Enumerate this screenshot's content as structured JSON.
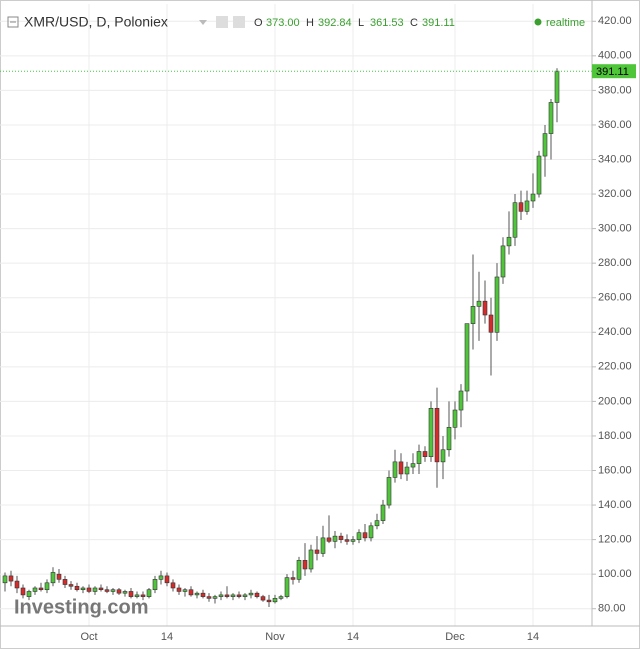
{
  "chart_data": {
    "type": "candlestick",
    "title": "XMR/USD, D, Poloniex",
    "header": {
      "labels": [
        "O",
        "H",
        "L",
        "C"
      ],
      "values": [
        "373.00",
        "392.84",
        "361.53",
        "391.11"
      ]
    },
    "status": "realtime",
    "watermark": "Investing.com",
    "last_price": {
      "value": 391.11,
      "label": "391.11"
    },
    "categories": [
      null,
      null,
      null,
      null,
      null,
      null,
      null,
      null,
      null,
      null,
      null,
      null,
      null,
      null,
      "Oct",
      null,
      null,
      null,
      null,
      null,
      null,
      null,
      null,
      null,
      null,
      null,
      null,
      "14",
      null,
      null,
      null,
      null,
      null,
      null,
      null,
      null,
      null,
      null,
      null,
      null,
      null,
      null,
      null,
      null,
      null,
      "Nov",
      null,
      null,
      null,
      null,
      null,
      null,
      null,
      null,
      null,
      null,
      null,
      null,
      "14",
      null,
      null,
      null,
      null,
      null,
      null,
      null,
      null,
      null,
      null,
      null,
      null,
      null,
      null,
      null,
      null,
      "Dec",
      null,
      null,
      null,
      null,
      null,
      null,
      null,
      null,
      null,
      null,
      null,
      null,
      "14",
      null,
      null,
      null,
      null
    ],
    "open": [
      95,
      99,
      96,
      92,
      87,
      90,
      92,
      91,
      95,
      100,
      97,
      94,
      93,
      91,
      92,
      90,
      92,
      91,
      90,
      91,
      89,
      90,
      87,
      88,
      87,
      91,
      97,
      99,
      95,
      92,
      90,
      91,
      88,
      89,
      87,
      86,
      87,
      88,
      87,
      88,
      87,
      88,
      89,
      87,
      85,
      84,
      86,
      87,
      98,
      97,
      108,
      103,
      114,
      112,
      121,
      119,
      122,
      120,
      119,
      120,
      124,
      121,
      128,
      131,
      140,
      156,
      165,
      158,
      162,
      164,
      171,
      168,
      196,
      165,
      172,
      185,
      195,
      206,
      245,
      255,
      258,
      250,
      240,
      272,
      290,
      295,
      315,
      310,
      316,
      320,
      342,
      355,
      373
    ],
    "high": [
      101,
      102,
      99,
      94,
      91,
      93,
      95,
      97,
      104,
      103,
      99,
      96,
      95,
      93,
      94,
      93,
      94,
      93,
      92,
      92,
      91,
      92,
      90,
      90,
      92,
      99,
      102,
      101,
      97,
      94,
      92,
      93,
      90,
      91,
      89,
      88,
      90,
      93,
      89,
      90,
      89,
      91,
      90,
      88,
      88,
      88,
      88,
      100,
      102,
      110,
      118,
      117,
      122,
      128,
      134,
      125,
      124,
      123,
      122,
      126,
      129,
      130,
      135,
      143,
      160,
      172,
      170,
      165,
      170,
      175,
      174,
      200,
      208,
      180,
      200,
      200,
      210,
      245,
      285,
      275,
      270,
      260,
      280,
      295,
      310,
      320,
      322,
      322,
      332,
      345,
      360,
      375,
      392.84
    ],
    "low": [
      90,
      93,
      89,
      86,
      85,
      88,
      90,
      89,
      93,
      95,
      92,
      91,
      90,
      89,
      89,
      88,
      90,
      89,
      88,
      88,
      87,
      86,
      86,
      85,
      86,
      89,
      94,
      93,
      90,
      88,
      87,
      87,
      86,
      86,
      84,
      83,
      85,
      86,
      85,
      86,
      85,
      86,
      86,
      84,
      81,
      83,
      85,
      86,
      94,
      95,
      99,
      101,
      108,
      110,
      118,
      115,
      118,
      117,
      117,
      118,
      119,
      119,
      126,
      129,
      138,
      153,
      155,
      154,
      158,
      158,
      165,
      165,
      150,
      155,
      168,
      178,
      185,
      200,
      230,
      235,
      245,
      215,
      235,
      268,
      285,
      290,
      305,
      308,
      312,
      318,
      330,
      340,
      361.53
    ],
    "close": [
      99,
      96,
      92,
      88,
      90,
      92,
      91,
      95,
      101,
      97,
      94,
      93,
      91,
      92,
      90,
      92,
      91,
      90,
      91,
      89,
      90,
      87,
      88,
      87,
      91,
      97,
      99,
      95,
      92,
      90,
      91,
      88,
      89,
      87,
      86,
      87,
      88,
      87,
      88,
      87,
      88,
      89,
      87,
      85,
      84,
      86,
      87,
      98,
      97,
      108,
      103,
      114,
      112,
      121,
      119,
      122,
      120,
      119,
      120,
      124,
      121,
      128,
      131,
      140,
      156,
      165,
      158,
      162,
      164,
      171,
      168,
      196,
      165,
      172,
      185,
      195,
      206,
      245,
      255,
      258,
      250,
      240,
      272,
      290,
      295,
      315,
      310,
      316,
      320,
      342,
      355,
      373,
      391.11
    ],
    "up_color": "#4fc63a",
    "down_color": "#d62b2b",
    "ylim": [
      70,
      430
    ],
    "yticks": [
      {
        "value": 80,
        "label": "80.00"
      },
      {
        "value": 100,
        "label": "100.00"
      },
      {
        "value": 120,
        "label": "120.00"
      },
      {
        "value": 140,
        "label": "140.00"
      },
      {
        "value": 160,
        "label": "160.00"
      },
      {
        "value": 180,
        "label": "180.00"
      },
      {
        "value": 200,
        "label": "200.00"
      },
      {
        "value": 220,
        "label": "220.00"
      },
      {
        "value": 240,
        "label": "240.00"
      },
      {
        "value": 260,
        "label": "260.00"
      },
      {
        "value": 280,
        "label": "280.00"
      },
      {
        "value": 300,
        "label": "300.00"
      },
      {
        "value": 320,
        "label": "320.00"
      },
      {
        "value": 340,
        "label": "340.00"
      },
      {
        "value": 360,
        "label": "360.00"
      },
      {
        "value": 380,
        "label": "380.00"
      },
      {
        "value": 400,
        "label": "400.00"
      },
      {
        "value": 420,
        "label": "420.00"
      }
    ],
    "grid": true
  }
}
